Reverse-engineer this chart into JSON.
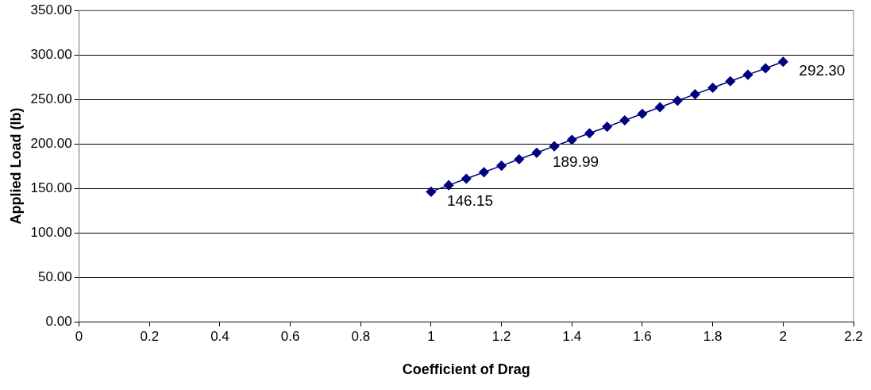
{
  "chart_data": {
    "type": "line",
    "xlabel": "Coefficient of Drag",
    "ylabel": "Applied Load (lb)",
    "x": [
      1,
      1.05,
      1.1,
      1.15,
      1.2,
      1.25,
      1.3,
      1.35,
      1.4,
      1.45,
      1.5,
      1.55,
      1.6,
      1.65,
      1.7,
      1.75,
      1.8,
      1.85,
      1.9,
      1.95,
      2
    ],
    "series": [
      {
        "color": "#000080",
        "values": [
          146.15,
          153.5,
          160.8,
          168.1,
          175.4,
          182.7,
          189.99,
          197.3,
          204.6,
          211.9,
          219.2,
          226.5,
          233.8,
          241.2,
          248.5,
          255.8,
          263.1,
          270.4,
          277.7,
          285.0,
          292.3
        ],
        "value_labels": [
          "146.15",
          null,
          null,
          null,
          null,
          null,
          "189.99",
          null,
          null,
          null,
          null,
          null,
          null,
          null,
          null,
          null,
          null,
          null,
          null,
          null,
          "292.30"
        ]
      }
    ],
    "xlim": [
      0,
      2.2
    ],
    "xticks": [
      0,
      0.2,
      0.4,
      0.6,
      0.8,
      1,
      1.2,
      1.4,
      1.6,
      1.8,
      2,
      2.2
    ],
    "ylim": [
      0,
      350
    ],
    "yticks": [
      {
        "value": 0,
        "label": "0.00"
      },
      {
        "value": 50,
        "label": "50.00"
      },
      {
        "value": 100,
        "label": "100.00"
      },
      {
        "value": 150,
        "label": "150.00"
      },
      {
        "value": 200,
        "label": "200.00"
      },
      {
        "value": 250,
        "label": "250.00"
      },
      {
        "value": 300,
        "label": "300.00"
      },
      {
        "value": 350,
        "label": "350.00"
      }
    ],
    "grid": "y",
    "legend": false,
    "marker": "diamond",
    "line_style": "solid"
  }
}
